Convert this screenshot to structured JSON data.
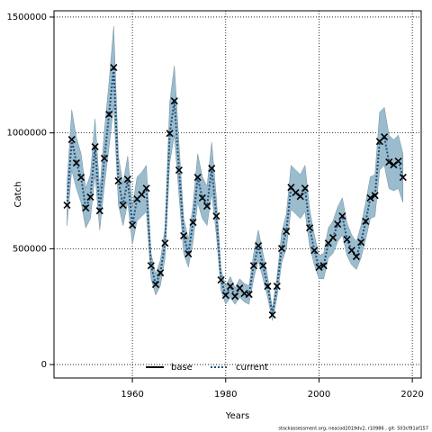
{
  "chart_data": {
    "type": "line",
    "x_label": "Years",
    "y_label": "Catch",
    "footnote": "stockassessment.org, neacod2019dv2, r10986 , git: 503cf91af157",
    "x": [
      1946,
      1947,
      1948,
      1949,
      1950,
      1951,
      1952,
      1953,
      1954,
      1955,
      1956,
      1957,
      1958,
      1959,
      1960,
      1961,
      1962,
      1963,
      1964,
      1965,
      1966,
      1967,
      1968,
      1969,
      1970,
      1971,
      1972,
      1973,
      1974,
      1975,
      1976,
      1977,
      1978,
      1979,
      1980,
      1981,
      1982,
      1983,
      1984,
      1985,
      1986,
      1987,
      1988,
      1989,
      1990,
      1991,
      1992,
      1993,
      1994,
      1995,
      1996,
      1997,
      1998,
      1999,
      2000,
      2001,
      2002,
      2003,
      2004,
      2005,
      2006,
      2007,
      2008,
      2009,
      2010,
      2011,
      2012,
      2013,
      2014,
      2015,
      2016,
      2017,
      2018
    ],
    "series": [
      {
        "name": "base",
        "color": "#000000",
        "values": [
          688000,
          971000,
          870000,
          808000,
          676000,
          723000,
          940000,
          664000,
          890000,
          1080000,
          1282000,
          793000,
          688000,
          800000,
          602000,
          715000,
          734000,
          761000,
          427000,
          346000,
          396000,
          524000,
          998000,
          1138000,
          839000,
          556000,
          478000,
          614000,
          808000,
          719000,
          684000,
          847000,
          641000,
          365000,
          299000,
          338000,
          295000,
          330000,
          307000,
          303000,
          427000,
          513000,
          427000,
          338000,
          214000,
          338000,
          501000,
          575000,
          765000,
          742000,
          726000,
          761000,
          590000,
          493000,
          420000,
          427000,
          524000,
          548000,
          606000,
          641000,
          540000,
          493000,
          466000,
          528000,
          618000,
          719000,
          730000,
          963000,
          983000,
          874000,
          862000,
          878000,
          808000
        ]
      },
      {
        "name": "current",
        "color": "#1f4e79",
        "values": [
          688000,
          971000,
          870000,
          808000,
          676000,
          723000,
          940000,
          664000,
          890000,
          1080000,
          1282000,
          793000,
          688000,
          800000,
          602000,
          715000,
          734000,
          761000,
          427000,
          346000,
          396000,
          524000,
          998000,
          1138000,
          839000,
          556000,
          478000,
          614000,
          808000,
          719000,
          684000,
          847000,
          641000,
          365000,
          299000,
          338000,
          295000,
          330000,
          307000,
          303000,
          427000,
          513000,
          427000,
          338000,
          214000,
          338000,
          501000,
          575000,
          765000,
          742000,
          726000,
          761000,
          590000,
          493000,
          420000,
          427000,
          524000,
          548000,
          606000,
          641000,
          540000,
          493000,
          466000,
          528000,
          618000,
          719000,
          730000,
          963000,
          983000,
          874000,
          862000,
          878000,
          808000
        ]
      }
    ],
    "interval": {
      "color": "#9bbccd",
      "lower": [
        600000,
        840000,
        760000,
        700000,
        590000,
        630000,
        820000,
        580000,
        770000,
        940000,
        1120000,
        690000,
        600000,
        700000,
        520000,
        620000,
        640000,
        660000,
        370000,
        300000,
        340000,
        460000,
        870000,
        990000,
        730000,
        480000,
        420000,
        530000,
        700000,
        630000,
        600000,
        740000,
        560000,
        320000,
        260000,
        290000,
        260000,
        290000,
        270000,
        260000,
        370000,
        450000,
        370000,
        290000,
        190000,
        290000,
        440000,
        500000,
        670000,
        650000,
        630000,
        660000,
        510000,
        430000,
        370000,
        370000,
        460000,
        480000,
        530000,
        560000,
        470000,
        430000,
        410000,
        460000,
        540000,
        630000,
        640000,
        840000,
        860000,
        760000,
        750000,
        760000,
        700000
      ],
      "upper": [
        780000,
        1100000,
        980000,
        910000,
        760000,
        820000,
        1060000,
        750000,
        1010000,
        1220000,
        1460000,
        900000,
        780000,
        900000,
        680000,
        810000,
        830000,
        860000,
        480000,
        390000,
        450000,
        590000,
        1130000,
        1290000,
        950000,
        630000,
        540000,
        690000,
        910000,
        810000,
        770000,
        960000,
        720000,
        410000,
        340000,
        380000,
        330000,
        370000,
        350000,
        340000,
        480000,
        580000,
        480000,
        380000,
        240000,
        380000,
        570000,
        650000,
        860000,
        840000,
        820000,
        860000,
        670000,
        560000,
        470000,
        480000,
        590000,
        620000,
        680000,
        720000,
        610000,
        560000,
        530000,
        600000,
        700000,
        810000,
        820000,
        1090000,
        1110000,
        990000,
        970000,
        990000,
        910000
      ]
    },
    "xlim": [
      1943.2,
      2021.9
    ],
    "ylim": [
      -58000,
      1527000
    ],
    "xticks": [
      1960,
      1980,
      2000,
      2020
    ],
    "yticks": [
      0,
      500000,
      1000000,
      1500000
    ],
    "grid": true,
    "legend": "bottom"
  }
}
